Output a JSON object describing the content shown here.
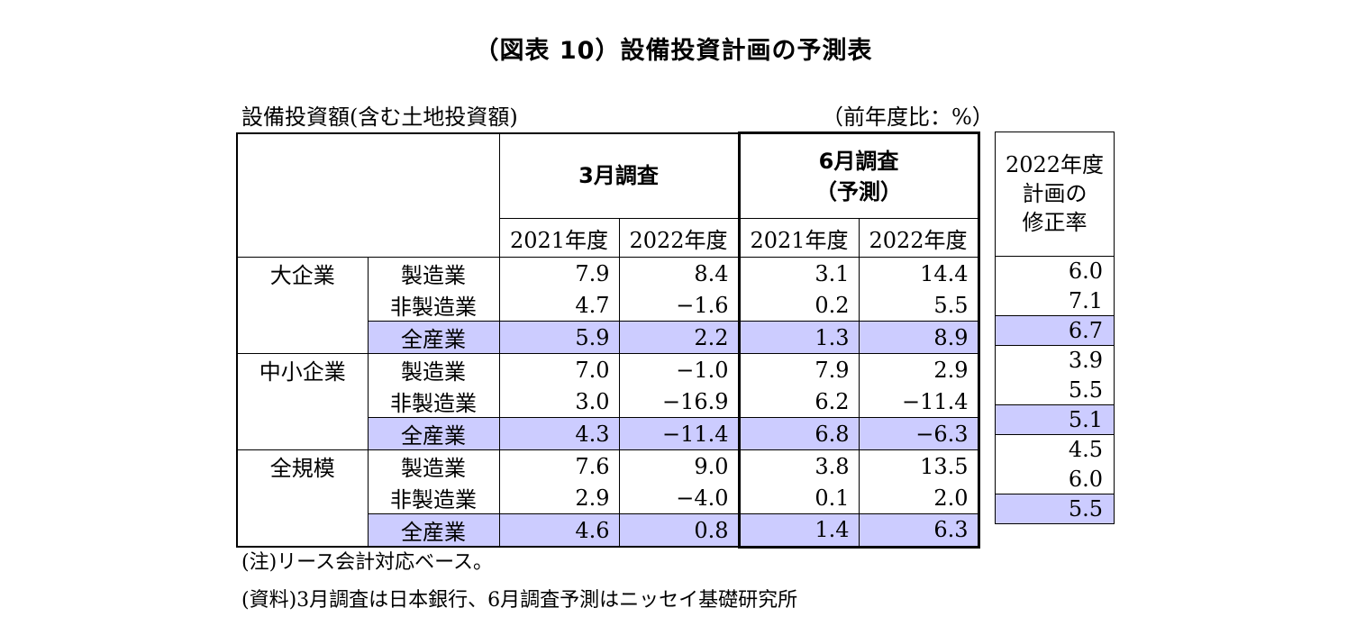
{
  "title": "（図表 10）設備投資計画の予測表",
  "subtitle": "設備投資額(含む土地投資額)",
  "unit": "（前年度比：%）",
  "col_groups": {
    "march": "3月調査",
    "june_line1": "6月調査",
    "june_line2": "（予測）",
    "revision_line1": "2022年度",
    "revision_line2": "計画の",
    "revision_line3": "修正率"
  },
  "years": [
    "2021年度",
    "2022年度",
    "2021年度",
    "2022年度"
  ],
  "rows": [
    {
      "size": "大企業",
      "industry": "製造業",
      "m21": "7.9",
      "m22": "8.4",
      "j21": "3.1",
      "j22": "14.4",
      "rev": "6.0"
    },
    {
      "size": "",
      "industry": "非製造業",
      "m21": "4.7",
      "m22": "−1.6",
      "j21": "0.2",
      "j22": "5.5",
      "rev": "7.1"
    },
    {
      "size": "",
      "industry": "全産業",
      "m21": "5.9",
      "m22": "2.2",
      "j21": "1.3",
      "j22": "8.9",
      "rev": "6.7"
    },
    {
      "size": "中小企業",
      "industry": "製造業",
      "m21": "7.0",
      "m22": "−1.0",
      "j21": "7.9",
      "j22": "2.9",
      "rev": "3.9"
    },
    {
      "size": "",
      "industry": "非製造業",
      "m21": "3.0",
      "m22": "−16.9",
      "j21": "6.2",
      "j22": "−11.4",
      "rev": "5.5"
    },
    {
      "size": "",
      "industry": "全産業",
      "m21": "4.3",
      "m22": "−11.4",
      "j21": "6.8",
      "j22": "−6.3",
      "rev": "5.1"
    },
    {
      "size": "全規模",
      "industry": "製造業",
      "m21": "7.6",
      "m22": "9.0",
      "j21": "3.8",
      "j22": "13.5",
      "rev": "4.5"
    },
    {
      "size": "",
      "industry": "非製造業",
      "m21": "2.9",
      "m22": "−4.0",
      "j21": "0.1",
      "j22": "2.0",
      "rev": "6.0"
    },
    {
      "size": "",
      "industry": "全産業",
      "m21": "4.6",
      "m22": "0.8",
      "j21": "1.4",
      "j22": "6.3",
      "rev": "5.5"
    }
  ],
  "notes": {
    "note1": "(注)リース会計対応ベース。",
    "note2": "(資料)3月調査は日本銀行、6月調査予測はニッセイ基礎研究所"
  },
  "colors": {
    "highlight": "#ccccff"
  },
  "chart_data": {
    "type": "table",
    "title": "（図表 10）設備投資計画の予測表",
    "columns": [
      "3月調査 2021年度",
      "3月調査 2022年度",
      "6月調査（予測） 2021年度",
      "6月調査（予測） 2022年度",
      "2022年度計画の修正率"
    ],
    "row_labels": [
      "大企業 製造業",
      "大企業 非製造業",
      "大企業 全産業",
      "中小企業 製造業",
      "中小企業 非製造業",
      "中小企業 全産業",
      "全規模 製造業",
      "全規模 非製造業",
      "全規模 全産業"
    ],
    "values": [
      [
        7.9,
        8.4,
        3.1,
        14.4,
        6.0
      ],
      [
        4.7,
        -1.6,
        0.2,
        5.5,
        7.1
      ],
      [
        5.9,
        2.2,
        1.3,
        8.9,
        6.7
      ],
      [
        7.0,
        -1.0,
        7.9,
        2.9,
        3.9
      ],
      [
        3.0,
        -16.9,
        6.2,
        -11.4,
        5.5
      ],
      [
        4.3,
        -11.4,
        6.8,
        -6.3,
        5.1
      ],
      [
        7.6,
        9.0,
        3.8,
        13.5,
        4.5
      ],
      [
        2.9,
        -4.0,
        0.1,
        2.0,
        6.0
      ],
      [
        4.6,
        0.8,
        1.4,
        6.3,
        5.5
      ]
    ]
  }
}
